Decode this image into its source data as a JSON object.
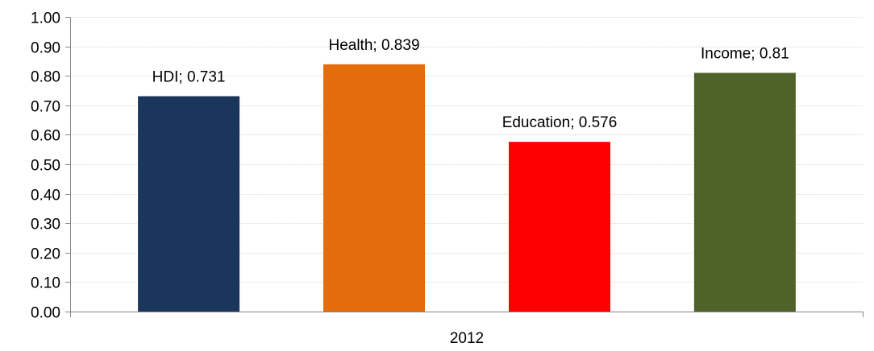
{
  "chart_data": {
    "type": "bar",
    "title": "",
    "xlabel": "",
    "ylabel": "",
    "categories": [
      "2012"
    ],
    "series": [
      {
        "name": "HDI",
        "values": [
          0.731
        ],
        "color": "#1b365d",
        "label": "HDI; 0.731"
      },
      {
        "name": "Health",
        "values": [
          0.839
        ],
        "color": "#e46c0a",
        "label": "Health; 0.839"
      },
      {
        "name": "Education",
        "values": [
          0.576
        ],
        "color": "#ff0000",
        "label": "Education; 0.576"
      },
      {
        "name": "Income",
        "values": [
          0.81
        ],
        "color": "#4f6228",
        "label": "Income; 0.81"
      }
    ],
    "ylim": [
      0,
      1
    ],
    "yticks": [
      "0.00",
      "0.10",
      "0.20",
      "0.30",
      "0.40",
      "0.50",
      "0.60",
      "0.70",
      "0.80",
      "0.90",
      "1.00"
    ],
    "ytick_values": [
      0,
      0.1,
      0.2,
      0.3,
      0.4,
      0.5,
      0.6,
      0.7,
      0.8,
      0.9,
      1.0
    ],
    "grid": true,
    "legend": "none"
  }
}
